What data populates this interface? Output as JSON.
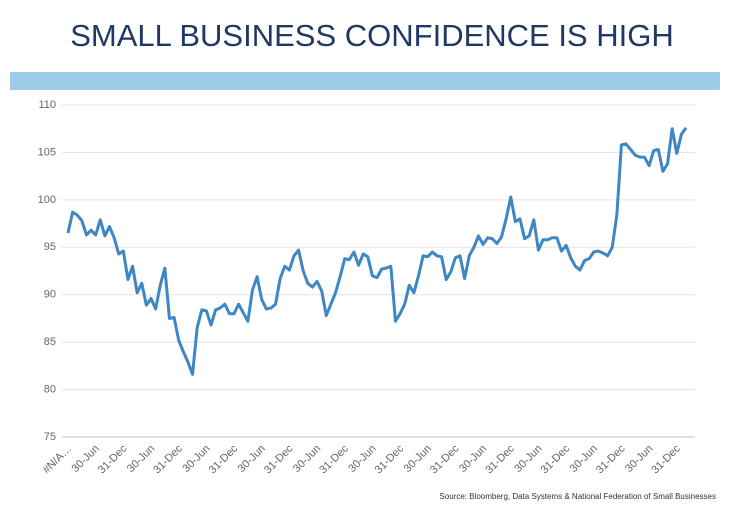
{
  "chart_data": {
    "type": "line",
    "title": "SMALL BUSINESS CONFIDENCE IS HIGH",
    "source": "Source:  Bloomberg, Data Systems & National Federation of Small Businesses",
    "categories": [
      "#N/A…",
      null,
      null,
      null,
      null,
      null,
      "30-Jun",
      null,
      null,
      null,
      null,
      null,
      "31-Dec",
      null,
      null,
      null,
      null,
      null,
      "30-Jun",
      null,
      null,
      null,
      null,
      null,
      "31-Dec",
      null,
      null,
      null,
      null,
      null,
      "30-Jun",
      null,
      null,
      null,
      null,
      null,
      "31-Dec",
      null,
      null,
      null,
      null,
      null,
      "30-Jun",
      null,
      null,
      null,
      null,
      null,
      "31-Dec",
      null,
      null,
      null,
      null,
      null,
      "30-Jun",
      null,
      null,
      null,
      null,
      null,
      "31-Dec",
      null,
      null,
      null,
      null,
      null,
      "30-Jun",
      null,
      null,
      null,
      null,
      null,
      "31-Dec",
      null,
      null,
      null,
      null,
      null,
      "30-Jun",
      null,
      null,
      null,
      null,
      null,
      "31-Dec",
      null,
      null,
      null,
      null,
      null,
      "30-Jun",
      null,
      null,
      null,
      null,
      null,
      "31-Dec",
      null,
      null,
      null,
      null,
      null,
      "30-Jun",
      null,
      null,
      null,
      null,
      null,
      "31-Dec",
      null,
      null,
      null,
      null,
      null,
      "30-Jun",
      null,
      null,
      null,
      null,
      null,
      "31-Dec",
      null,
      null,
      null,
      null,
      null,
      "30-Jun",
      null,
      null,
      null,
      null,
      null,
      "31-Dec",
      null,
      null
    ],
    "values": [
      96.5,
      98.7,
      98.4,
      97.8,
      96.3,
      96.8,
      96.3,
      97.9,
      96.2,
      97.2,
      96.0,
      94.3,
      94.6,
      91.6,
      93.0,
      90.2,
      91.2,
      88.9,
      89.6,
      88.5,
      91.0,
      92.8,
      87.5,
      87.6,
      85.2,
      84.0,
      82.9,
      81.6,
      86.5,
      88.4,
      88.3,
      86.8,
      88.4,
      88.6,
      89.0,
      88.0,
      88.0,
      89.0,
      88.1,
      87.2,
      90.5,
      91.9,
      89.5,
      88.5,
      88.6,
      89.0,
      91.7,
      93.0,
      92.6,
      94.1,
      94.7,
      92.5,
      91.2,
      90.8,
      91.4,
      90.4,
      87.8,
      89.0,
      90.2,
      91.9,
      93.8,
      93.7,
      94.5,
      93.1,
      94.3,
      94.0,
      92.0,
      91.8,
      92.7,
      92.8,
      93.0,
      87.2,
      88.0,
      89.0,
      91.0,
      90.2,
      92.0,
      94.1,
      94.0,
      94.5,
      94.1,
      94.0,
      91.6,
      92.4,
      93.9,
      94.1,
      91.7,
      94.1,
      95.0,
      96.2,
      95.3,
      96.0,
      95.9,
      95.4,
      96.1,
      98.0,
      100.3,
      97.7,
      98.0,
      95.9,
      96.2,
      97.9,
      94.7,
      95.8,
      95.8,
      96.0,
      96.0,
      94.6,
      95.2,
      93.9,
      93.0,
      92.6,
      93.6,
      93.8,
      94.5,
      94.6,
      94.4,
      94.1,
      95.0,
      98.4,
      105.8,
      105.9,
      105.3,
      104.7,
      104.5,
      104.5,
      103.6,
      105.2,
      105.3,
      103.0,
      103.8,
      107.5,
      104.9,
      106.9,
      107.6
    ],
    "color": "#3e87c4",
    "ylim": [
      75,
      110
    ],
    "yticks": [
      75,
      80,
      85,
      90,
      95,
      100,
      105,
      110
    ],
    "grid": true
  }
}
